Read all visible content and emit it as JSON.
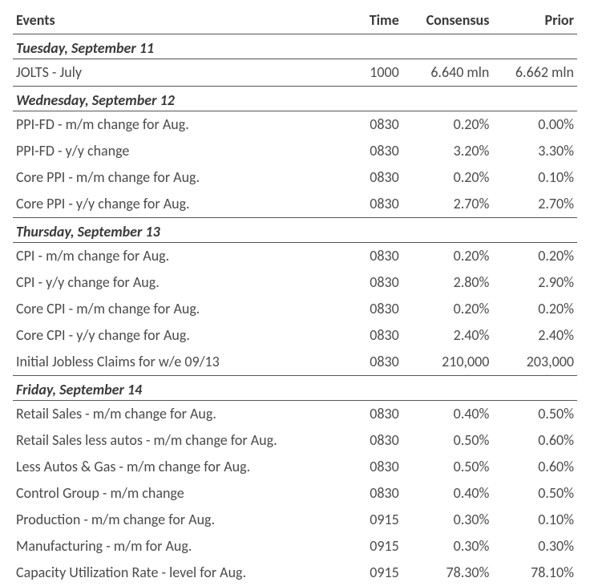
{
  "table": {
    "headers": {
      "events": "Events",
      "time": "Time",
      "consensus": "Consensus",
      "prior": "Prior"
    },
    "colors": {
      "text": "#4a4a4a",
      "header_text": "#3a3a3a",
      "border": "#555555",
      "background": "#ffffff"
    },
    "font_size_pt": 14,
    "sections": [
      {
        "title": "Tuesday, September 11",
        "rows": [
          {
            "event": "JOLTS - July",
            "time": "1000",
            "consensus": "6.640 mln",
            "prior": "6.662 mln"
          }
        ]
      },
      {
        "title": "Wednesday, September 12",
        "rows": [
          {
            "event": "PPI-FD - m/m change for Aug.",
            "time": "0830",
            "consensus": "0.20%",
            "prior": "0.00%"
          },
          {
            "event": "PPI-FD - y/y change",
            "time": "0830",
            "consensus": "3.20%",
            "prior": "3.30%"
          },
          {
            "event": "Core PPI - m/m change for Aug.",
            "time": "0830",
            "consensus": "0.20%",
            "prior": "0.10%"
          },
          {
            "event": "Core PPI - y/y change for Aug.",
            "time": "0830",
            "consensus": "2.70%",
            "prior": "2.70%"
          }
        ]
      },
      {
        "title": "Thursday, September 13",
        "rows": [
          {
            "event": "CPI - m/m change for Aug.",
            "time": "0830",
            "consensus": "0.20%",
            "prior": "0.20%"
          },
          {
            "event": "CPI - y/y change for Aug.",
            "time": "0830",
            "consensus": "2.80%",
            "prior": "2.90%"
          },
          {
            "event": "Core CPI - m/m change for Aug.",
            "time": "0830",
            "consensus": "0.20%",
            "prior": "0.20%"
          },
          {
            "event": "Core CPI  - y/y change for Aug.",
            "time": "0830",
            "consensus": "2.40%",
            "prior": "2.40%"
          },
          {
            "event": "Initial Jobless Claims for w/e 09/13",
            "time": "0830",
            "consensus": "210,000",
            "prior": "203,000"
          }
        ]
      },
      {
        "title": "Friday, September 14",
        "rows": [
          {
            "event": "Retail Sales - m/m change for Aug.",
            "time": "0830",
            "consensus": "0.40%",
            "prior": "0.50%"
          },
          {
            "event": "Retail Sales less autos - m/m change for Aug.",
            "time": "0830",
            "consensus": "0.50%",
            "prior": "0.60%"
          },
          {
            "event": "Less Autos & Gas - m/m change for Aug.",
            "time": "0830",
            "consensus": "0.50%",
            "prior": "0.60%"
          },
          {
            "event": "Control Group - m/m change",
            "time": "0830",
            "consensus": "0.40%",
            "prior": "0.50%"
          },
          {
            "event": "Production - m/m change for Aug.",
            "time": "0915",
            "consensus": "0.30%",
            "prior": "0.10%"
          },
          {
            "event": "Manufacturing - m/m for Aug.",
            "time": "0915",
            "consensus": "0.30%",
            "prior": "0.30%"
          },
          {
            "event": "Capacity Utilization Rate - level for Aug.",
            "time": "0915",
            "consensus": "78.30%",
            "prior": "78.10%"
          }
        ]
      }
    ]
  }
}
